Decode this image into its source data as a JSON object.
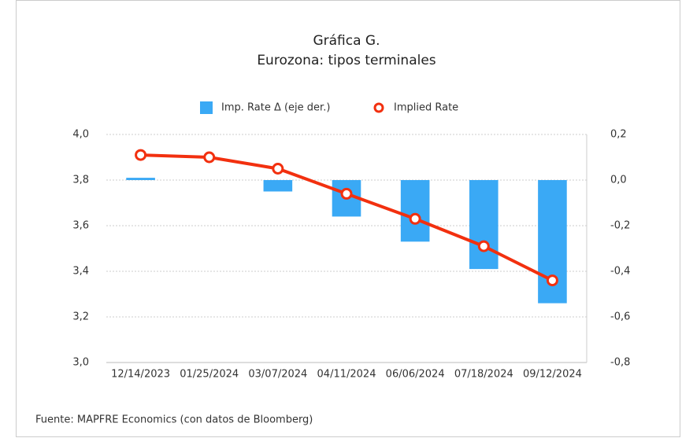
{
  "chart_data": {
    "type": "combo",
    "title": "Gráfica G.",
    "subtitle": "Eurozona: tipos terminales",
    "source": "Fuente: MAPFRE Economics (con datos de Bloomberg)",
    "categories": [
      "12/14/2023",
      "01/25/2024",
      "03/07/2024",
      "04/11/2024",
      "06/06/2024",
      "07/18/2024",
      "09/12/2024"
    ],
    "series": [
      {
        "name": "Imp. Rate Δ (eje der.)",
        "type": "bar",
        "axis": "y2",
        "color": "#3aa9f5",
        "values": [
          0.01,
          0,
          -0.05,
          -0.16,
          -0.27,
          -0.39,
          -0.54
        ]
      },
      {
        "name": "Implied Rate",
        "type": "line",
        "color": "#f2300f",
        "values": [
          3.91,
          3.9,
          3.85,
          3.74,
          3.63,
          3.51,
          3.36
        ]
      }
    ],
    "ylim": [
      3.0,
      4.0
    ],
    "yticks": [
      {
        "value": 3.0,
        "label": "3,0"
      },
      {
        "value": 3.2,
        "label": "3,2"
      },
      {
        "value": 3.4,
        "label": "3,4"
      },
      {
        "value": 3.6,
        "label": "3,6"
      },
      {
        "value": 3.8,
        "label": "3,8"
      },
      {
        "value": 4.0,
        "label": "4,0"
      }
    ],
    "y2lim": [
      -0.8,
      0.2
    ],
    "y2ticks": [
      {
        "value": -0.8,
        "label": "-0,8"
      },
      {
        "value": -0.6,
        "label": "-0,6"
      },
      {
        "value": -0.4,
        "label": "-0,4"
      },
      {
        "value": -0.2,
        "label": "-0,2"
      },
      {
        "value": 0,
        "label": "0,0"
      },
      {
        "value": 0.2,
        "label": "0,2"
      }
    ],
    "grid": true,
    "legend": "top"
  }
}
